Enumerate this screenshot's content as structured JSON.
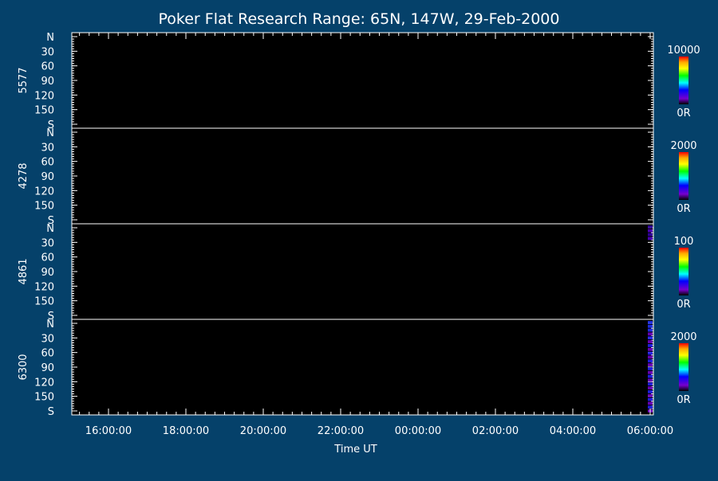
{
  "chart_data": {
    "type": "heatmap",
    "title": "Poker Flat Research Range: 65N, 147W, 29-Feb-2000",
    "xlabel": "Time UT",
    "x_ticks": [
      "16:00:00",
      "18:00:00",
      "20:00:00",
      "22:00:00",
      "00:00:00",
      "02:00:00",
      "04:00:00",
      "06:00:00"
    ],
    "y_ticks": [
      "N",
      "30",
      "60",
      "90",
      "120",
      "150",
      "S"
    ],
    "panels": [
      {
        "wavelength": "5577",
        "scale_max": "10000",
        "scale_min": "0R",
        "max_value": 10000
      },
      {
        "wavelength": "4278",
        "scale_max": "2000",
        "scale_min": "0R",
        "max_value": 2000
      },
      {
        "wavelength": "4861",
        "scale_max": "100",
        "scale_min": "0R",
        "max_value": 100
      },
      {
        "wavelength": "6300",
        "scale_max": "2000",
        "scale_min": "0R",
        "max_value": 2000
      }
    ],
    "colors": {
      "background": "#05416a",
      "plot": "#000000",
      "colormap": [
        "#ff0000",
        "#ffaa00",
        "#ffff00",
        "#00ff00",
        "#00ffff",
        "#0000ff",
        "#7700cc",
        "#000000"
      ]
    }
  }
}
